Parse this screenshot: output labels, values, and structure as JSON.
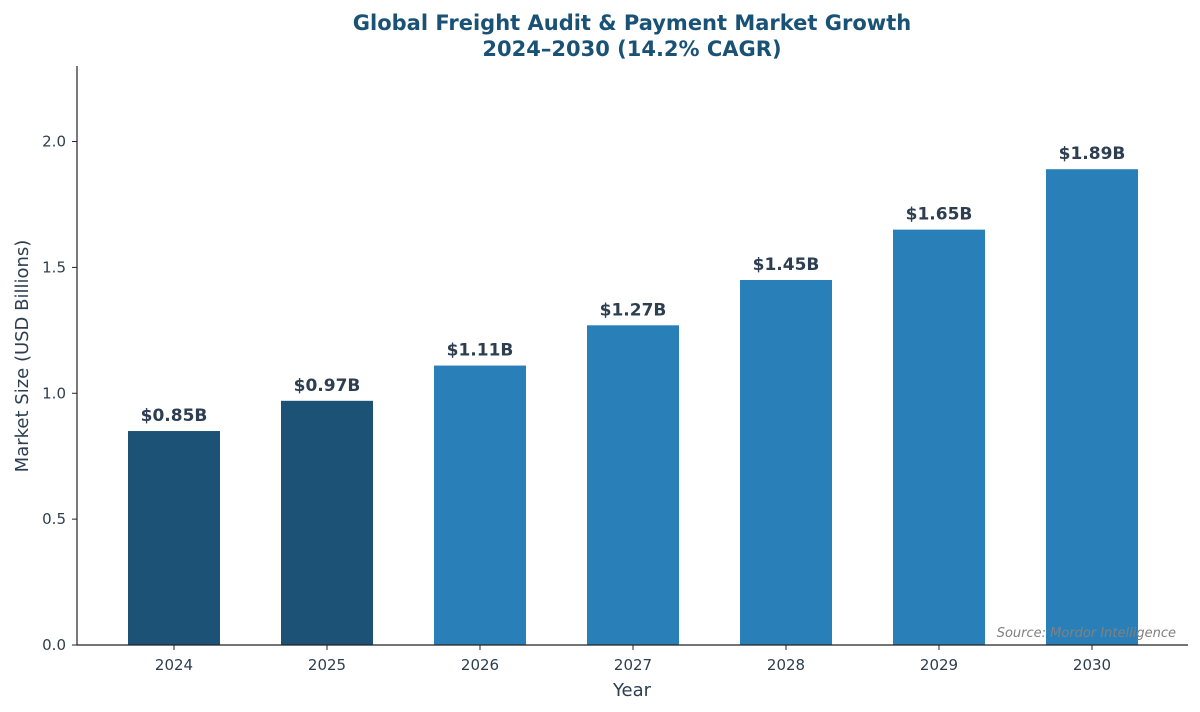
{
  "chart_data": {
    "type": "bar",
    "title_lines": [
      "Global Freight Audit & Payment Market Growth",
      "2024–2030 (14.2% CAGR)"
    ],
    "xlabel": "Year",
    "ylabel": "Market Size (USD Billions)",
    "categories": [
      "2024",
      "2025",
      "2026",
      "2027",
      "2028",
      "2029",
      "2030"
    ],
    "values": [
      0.85,
      0.97,
      1.11,
      1.27,
      1.45,
      1.65,
      1.89
    ],
    "data_labels": [
      "$0.85B",
      "$0.97B",
      "$1.11B",
      "$1.27B",
      "$1.45B",
      "$1.65B",
      "$1.89B"
    ],
    "bar_colors": [
      "#1b5276",
      "#1b5276",
      "#2980b9",
      "#2980b9",
      "#2980b9",
      "#2980b9",
      "#2980b9"
    ],
    "ylim": [
      0,
      2.3
    ],
    "yticks": [
      0.0,
      0.5,
      1.0,
      1.5,
      2.0
    ],
    "ytick_labels": [
      "0.0",
      "0.5",
      "1.0",
      "1.5",
      "2.0"
    ],
    "grid": false,
    "source": "Source: Mordor Intelligence"
  }
}
